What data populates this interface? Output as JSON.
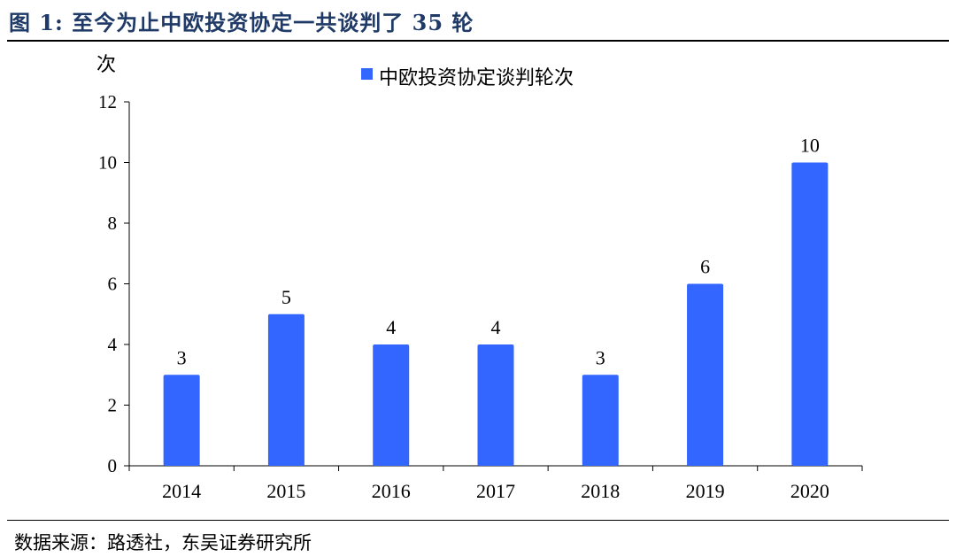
{
  "title": "图 1:  至今为止中欧投资协定一共谈判了 35 轮",
  "source": "数据来源：路透社，东吴证券研究所",
  "colors": {
    "bar": "#3366ff",
    "title": "#1f3a66",
    "axis": "#000000"
  },
  "chart_data": {
    "type": "bar",
    "categories": [
      "2014",
      "2015",
      "2016",
      "2017",
      "2018",
      "2019",
      "2020"
    ],
    "series": [
      {
        "name": "中欧投资协定谈判轮次",
        "values": [
          3,
          5,
          4,
          4,
          3,
          6,
          10
        ]
      }
    ],
    "ylabel": "次",
    "ylim": [
      0,
      12
    ],
    "yticks": [
      0,
      2,
      4,
      6,
      8,
      10,
      12
    ],
    "data_labels": true,
    "legend": "top-center",
    "grid": false
  }
}
